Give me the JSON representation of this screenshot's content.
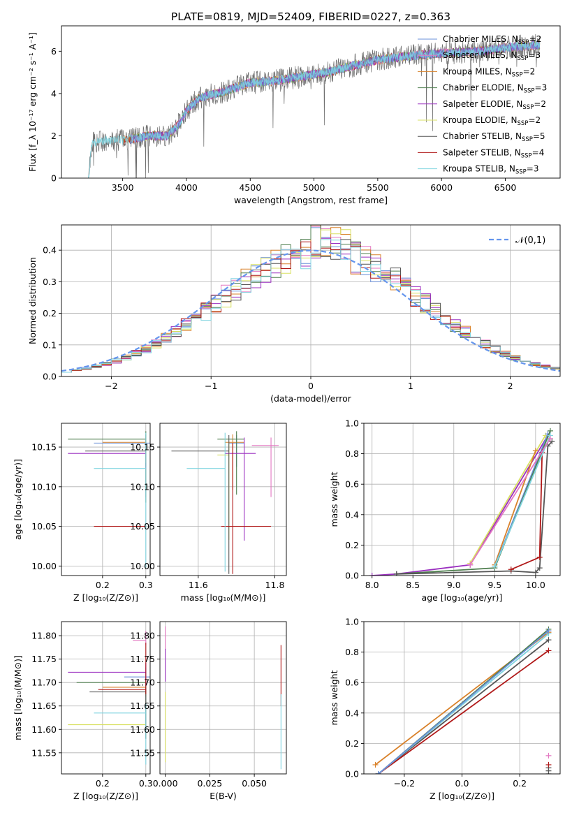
{
  "figure": {
    "title": "PLATE=0819, MJD=52409, FIBERID=0227, z=0.363"
  },
  "colors": {
    "chabrier_miles": "#6a8fd8",
    "salpeter_miles": "#e377c2",
    "kroupa_miles": "#d9822b",
    "chabrier_elodie": "#4f7f4f",
    "salpeter_elodie": "#9b30c0",
    "kroupa_elodie": "#d8e060",
    "chabrier_stelib": "#555555",
    "salpeter_stelib": "#b01818",
    "kroupa_stelib": "#80d4e0",
    "gauss": "#6495ed"
  },
  "chart_data": [
    {
      "id": "spectrum",
      "type": "line",
      "title": "PLATE=0819, MJD=52409, FIBERID=0227, z=0.363",
      "xlabel": "wavelength [Angstrom, rest frame]",
      "ylabel": "Flux [f_λ 10⁻¹⁷ erg cm⁻² s⁻¹ A⁻¹]",
      "xlim": [
        3020,
        6930
      ],
      "ylim": [
        0,
        7.2
      ],
      "xticks": [
        3500,
        4000,
        4500,
        5000,
        5500,
        6000,
        6500
      ],
      "yticks": [
        0,
        2,
        4,
        6
      ],
      "legend": "upper right",
      "series": [
        {
          "name": "Chabrier MILES, N",
          "sub": "SSP",
          "suffix": "=2",
          "key": "chabrier_miles"
        },
        {
          "name": "Salpeter MILES, N",
          "sub": "SSP",
          "suffix": "=3",
          "key": "salpeter_miles"
        },
        {
          "name": "Kroupa MILES, N",
          "sub": "SSP",
          "suffix": "=2",
          "key": "kroupa_miles"
        },
        {
          "name": "Chabrier ELODIE, N",
          "sub": "SSP",
          "suffix": "=3",
          "key": "chabrier_elodie"
        },
        {
          "name": "Salpeter ELODIE, N",
          "sub": "SSP",
          "suffix": "=2",
          "key": "salpeter_elodie"
        },
        {
          "name": "Kroupa ELODIE, N",
          "sub": "SSP",
          "suffix": "=2",
          "key": "kroupa_elodie"
        },
        {
          "name": "Chabrier STELIB, N",
          "sub": "SSP",
          "suffix": "=5",
          "key": "chabrier_stelib"
        },
        {
          "name": "Salpeter STELIB, N",
          "sub": "SSP",
          "suffix": "=4",
          "key": "salpeter_stelib"
        },
        {
          "name": "Kroupa STELIB, N",
          "sub": "SSP",
          "suffix": "=3",
          "key": "kroupa_stelib"
        }
      ],
      "flux_trend": {
        "x": [
          3230,
          3260,
          3400,
          3520,
          3700,
          3850,
          3950,
          4000,
          4100,
          4300,
          4500,
          4700,
          4900,
          5100,
          5300,
          5500,
          5800,
          6000,
          6300,
          6550,
          6770
        ],
        "y": [
          0.5,
          1.7,
          1.8,
          1.8,
          2.0,
          2.0,
          2.6,
          3.2,
          3.8,
          4.1,
          4.5,
          4.6,
          4.8,
          5.0,
          5.3,
          5.6,
          5.8,
          5.9,
          6.0,
          6.2,
          6.3
        ]
      }
    },
    {
      "id": "residuals",
      "type": "step",
      "xlabel": "(data-model)/error",
      "ylabel": "Normed distribution",
      "xlim": [
        -2.5,
        2.5
      ],
      "ylim": [
        0,
        0.48
      ],
      "xticks": [
        -2,
        -1,
        0,
        1,
        2
      ],
      "yticks": [
        0.0,
        0.1,
        0.2,
        0.3,
        0.4
      ],
      "legend": "upper right",
      "gauss_label": "𝒩(0,1)",
      "bin_width": 0.1
    },
    {
      "id": "age_vs_Z",
      "type": "errorbar",
      "xlabel": "Z [log₁₀(Z/Z⊙)]",
      "ylabel": "age  [log₁₀(age/yr)]",
      "xlim": [
        0.105,
        0.31
      ],
      "ylim": [
        9.988,
        10.18
      ],
      "xticks": [
        0.2,
        0.3
      ],
      "yticks": [
        10.0,
        10.05,
        10.1,
        10.15
      ],
      "points": [
        {
          "key": "chabrier_miles",
          "x": 0.3,
          "y": 10.155,
          "xerr": [
            0.12,
            0.01
          ],
          "yerr": [
            0.05,
            0.01
          ]
        },
        {
          "key": "salpeter_miles",
          "x": 0.3,
          "y": 10.152,
          "xerr": [
            0.0,
            0.0
          ],
          "yerr": [
            0.065,
            0.01
          ]
        },
        {
          "key": "kroupa_miles",
          "x": 0.3,
          "y": 10.156,
          "xerr": [
            0.1,
            0.0
          ],
          "yerr": [
            0.06,
            0.01
          ]
        },
        {
          "key": "chabrier_elodie",
          "x": 0.3,
          "y": 10.16,
          "xerr": [
            0.18,
            0.0
          ],
          "yerr": [
            0.08,
            0.01
          ]
        },
        {
          "key": "salpeter_elodie",
          "x": 0.3,
          "y": 10.142,
          "xerr": [
            0.18,
            0.0
          ],
          "yerr": [
            0.02,
            0.01
          ]
        },
        {
          "key": "kroupa_elodie",
          "x": 0.3,
          "y": 10.14,
          "xerr": [
            0.0,
            0.0
          ],
          "yerr": [
            0.01,
            0.01
          ]
        },
        {
          "key": "chabrier_stelib",
          "x": 0.3,
          "y": 10.145,
          "xerr": [
            0.14,
            0.0
          ],
          "yerr": [
            0.02,
            0.01
          ]
        },
        {
          "key": "salpeter_stelib",
          "x": 0.3,
          "y": 10.05,
          "xerr": [
            0.12,
            0.0
          ],
          "yerr": [
            0.0,
            0.0
          ]
        },
        {
          "key": "kroupa_stelib",
          "x": 0.3,
          "y": 10.123,
          "xerr": [
            0.12,
            0.0
          ],
          "yerr": [
            0.125,
            0.045
          ]
        }
      ]
    },
    {
      "id": "age_vs_mass",
      "type": "errorbar",
      "xlabel": "mass [log₁₀(M/M⊙)]",
      "ylabel": "",
      "xlim": [
        11.5,
        11.83
      ],
      "ylim": [
        9.988,
        10.18
      ],
      "xticks": [
        11.6,
        11.8
      ],
      "yticks": [
        10.0,
        10.05,
        10.1,
        10.15
      ],
      "points": [
        {
          "key": "chabrier_miles",
          "x": 11.7,
          "y": 10.155,
          "xerr": [
            0.02,
            0.02
          ],
          "yerr": [
            0.03,
            0.01
          ]
        },
        {
          "key": "salpeter_miles",
          "x": 11.79,
          "y": 10.152,
          "xerr": [
            0.05,
            0.02
          ],
          "yerr": [
            0.065,
            0.01
          ]
        },
        {
          "key": "kroupa_miles",
          "x": 11.69,
          "y": 10.156,
          "xerr": [
            0.02,
            0.03
          ],
          "yerr": [
            0.06,
            0.01
          ]
        },
        {
          "key": "chabrier_elodie",
          "x": 11.7,
          "y": 10.16,
          "xerr": [
            0.05,
            0.02
          ],
          "yerr": [
            0.07,
            0.01
          ]
        },
        {
          "key": "salpeter_elodie",
          "x": 11.72,
          "y": 10.142,
          "xerr": [
            0.05,
            0.03
          ],
          "yerr": [
            0.11,
            0.02
          ]
        },
        {
          "key": "kroupa_elodie",
          "x": 11.68,
          "y": 10.14,
          "xerr": [
            0.03,
            0.0
          ],
          "yerr": [
            0.107,
            0.015
          ]
        },
        {
          "key": "chabrier_stelib",
          "x": 11.68,
          "y": 10.145,
          "xerr": [
            0.15,
            0.0
          ],
          "yerr": [
            0.155,
            0.02
          ]
        },
        {
          "key": "salpeter_stelib",
          "x": 11.69,
          "y": 10.05,
          "xerr": [
            0.03,
            0.1
          ],
          "yerr": [
            0.06,
            0.105
          ]
        },
        {
          "key": "kroupa_stelib",
          "x": 11.67,
          "y": 10.123,
          "xerr": [
            0.1,
            0.0
          ],
          "yerr": [
            0.13,
            0.045
          ]
        }
      ]
    },
    {
      "id": "weight_vs_age",
      "type": "line",
      "xlabel": "age  [log₁₀(age/yr)]",
      "ylabel": "mass weight",
      "xlim": [
        7.9,
        10.3
      ],
      "ylim": [
        0,
        1
      ],
      "xticks": [
        8.0,
        8.5,
        9.0,
        9.5,
        10.0
      ],
      "yticks": [
        0.0,
        0.2,
        0.4,
        0.6,
        0.8,
        1.0
      ],
      "series": [
        {
          "key": "salpeter_elodie",
          "x": [
            8.0,
            8.3,
            9.2,
            10.15
          ],
          "y": [
            0.0,
            0.01,
            0.07,
            0.92
          ]
        },
        {
          "key": "kroupa_elodie",
          "x": [
            9.2,
            10.12
          ],
          "y": [
            0.08,
            0.92
          ]
        },
        {
          "key": "kroupa_miles",
          "x": [
            9.5,
            10.0
          ],
          "y": [
            0.07,
            0.82
          ]
        },
        {
          "key": "chabrier_miles",
          "x": [
            9.5,
            10.15
          ],
          "y": [
            0.06,
            0.93
          ]
        },
        {
          "key": "chabrier_elodie",
          "x": [
            8.3,
            9.5,
            10.18
          ],
          "y": [
            0.01,
            0.05,
            0.95
          ]
        },
        {
          "key": "chabrier_stelib",
          "x": [
            8.3,
            9.7,
            10.0,
            10.05,
            10.15,
            10.2
          ],
          "y": [
            0.01,
            0.03,
            0.02,
            0.05,
            0.85,
            0.88
          ]
        },
        {
          "key": "salpeter_stelib",
          "x": [
            9.7,
            10.05,
            10.08
          ],
          "y": [
            0.04,
            0.12,
            0.81
          ]
        },
        {
          "key": "kroupa_stelib",
          "x": [
            9.5,
            10.18
          ],
          "y": [
            0.06,
            0.92
          ]
        },
        {
          "key": "salpeter_miles",
          "x": [
            9.2,
            10.18
          ],
          "y": [
            0.07,
            0.9
          ]
        }
      ]
    },
    {
      "id": "mass_vs_Z",
      "type": "errorbar",
      "xlabel": "Z [log₁₀(Z/Z⊙)]",
      "ylabel": "mass [log₁₀(M/M⊙)]",
      "xlim": [
        0.105,
        0.31
      ],
      "ylim": [
        11.505,
        11.83
      ],
      "xticks": [
        0.2,
        0.3
      ],
      "yticks": [
        11.55,
        11.6,
        11.65,
        11.7,
        11.75,
        11.8
      ],
      "points": [
        {
          "key": "chabrier_miles",
          "x": 0.3,
          "y": 11.712,
          "xerr": [
            0.05,
            0.01
          ],
          "yerr": [
            0.02,
            0.02
          ]
        },
        {
          "key": "salpeter_miles",
          "x": 0.3,
          "y": 11.79,
          "xerr": [
            0.03,
            0.0
          ],
          "yerr": [
            0.01,
            0.02
          ]
        },
        {
          "key": "kroupa_miles",
          "x": 0.3,
          "y": 11.69,
          "xerr": [
            0.1,
            0.0
          ],
          "yerr": [
            0.02,
            0.02
          ]
        },
        {
          "key": "chabrier_elodie",
          "x": 0.3,
          "y": 11.7,
          "xerr": [
            0.16,
            0.0
          ],
          "yerr": [
            0.12,
            0.01
          ]
        },
        {
          "key": "salpeter_elodie",
          "x": 0.3,
          "y": 11.722,
          "xerr": [
            0.18,
            0.0
          ],
          "yerr": [
            0.03,
            0.02
          ]
        },
        {
          "key": "kroupa_elodie",
          "x": 0.3,
          "y": 11.61,
          "xerr": [
            0.18,
            0.0
          ],
          "yerr": [
            0.0,
            0.0
          ]
        },
        {
          "key": "chabrier_stelib",
          "x": 0.3,
          "y": 11.68,
          "xerr": [
            0.13,
            0.0
          ],
          "yerr": [
            0.1,
            0.01
          ]
        },
        {
          "key": "salpeter_stelib",
          "x": 0.3,
          "y": 11.685,
          "xerr": [
            0.11,
            0.0
          ],
          "yerr": [
            0.01,
            0.1
          ]
        },
        {
          "key": "kroupa_stelib",
          "x": 0.3,
          "y": 11.635,
          "xerr": [
            0.12,
            0.0
          ],
          "yerr": [
            0.11,
            0.02
          ]
        }
      ]
    },
    {
      "id": "mass_vs_ebv",
      "type": "errorbar",
      "xlabel": "E(B-V)",
      "ylabel": "",
      "xlim": [
        -0.003,
        0.068
      ],
      "ylim": [
        11.505,
        11.83
      ],
      "xticks": [
        0.0,
        0.025,
        0.05
      ],
      "yticks": [
        11.55,
        11.6,
        11.65,
        11.7,
        11.75,
        11.8
      ],
      "points": [
        {
          "key": "salpeter_miles",
          "x": 0.0,
          "y": 11.79,
          "xerr": [
            0,
            0
          ],
          "yerr": [
            0.02,
            0.03
          ]
        },
        {
          "key": "salpeter_elodie",
          "x": 0.0,
          "y": 11.722,
          "xerr": [
            0,
            0
          ],
          "yerr": [
            0.02,
            0.05
          ]
        },
        {
          "key": "kroupa_elodie",
          "x": 0.0,
          "y": 11.61,
          "xerr": [
            0,
            0
          ],
          "yerr": [
            0.08,
            0.07
          ]
        },
        {
          "key": "salpeter_stelib",
          "x": 0.065,
          "y": 11.69,
          "xerr": [
            0,
            0
          ],
          "yerr": [
            0.04,
            0.09
          ]
        },
        {
          "key": "kroupa_stelib",
          "x": 0.065,
          "y": 11.635,
          "xerr": [
            0,
            0
          ],
          "yerr": [
            0.12,
            0.04
          ]
        }
      ]
    },
    {
      "id": "weight_vs_Z",
      "type": "line",
      "xlabel": "Z [log₁₀(Z/Z⊙)]",
      "ylabel": "mass weight",
      "xlim": [
        -0.34,
        0.34
      ],
      "ylim": [
        0,
        1
      ],
      "xticks": [
        -0.2,
        0.0,
        0.2
      ],
      "yticks": [
        0.0,
        0.2,
        0.4,
        0.6,
        0.8,
        1.0
      ],
      "series": [
        {
          "key": "kroupa_miles",
          "x": [
            -0.3,
            0.3
          ],
          "y": [
            0.06,
            0.93
          ]
        },
        {
          "key": "chabrier_elodie",
          "x": [
            -0.29,
            0.3
          ],
          "y": [
            0.0,
            0.95
          ]
        },
        {
          "key": "chabrier_stelib",
          "x": [
            -0.29,
            0.3
          ],
          "y": [
            0.0,
            0.88
          ]
        },
        {
          "key": "salpeter_stelib",
          "x": [
            -0.29,
            0.3
          ],
          "y": [
            0.0,
            0.81
          ]
        },
        {
          "key": "kroupa_stelib",
          "x": [
            -0.29,
            0.3
          ],
          "y": [
            0.0,
            0.92
          ]
        },
        {
          "key": "chabrier_miles",
          "x": [
            -0.29,
            0.3
          ],
          "y": [
            0.0,
            0.94
          ]
        }
      ],
      "right_ticks": [
        0.0,
        0.02,
        0.04,
        0.06,
        0.12
      ]
    }
  ]
}
